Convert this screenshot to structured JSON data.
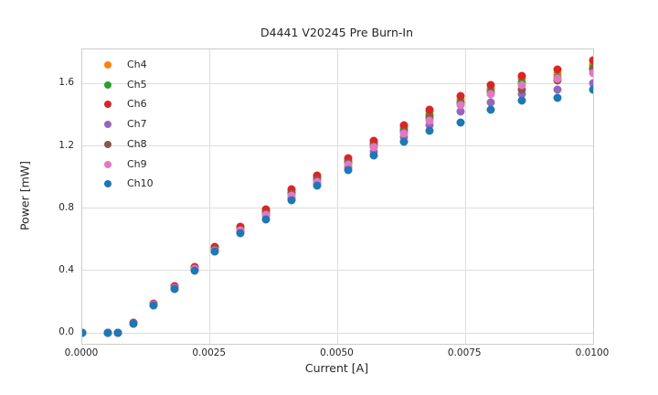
{
  "title": "D4441 V20245 Pre Burn-In",
  "axes": {
    "xlabel": "Current [A]",
    "ylabel": "Power [mW]"
  },
  "style": {
    "background": "#ffffff",
    "grid_color": "#dddddd",
    "spine_color": "#cccccc",
    "text_color": "#262626"
  },
  "chart_data": {
    "type": "scatter",
    "title": "D4441 V20245 Pre Burn-In",
    "xlabel": "Current [A]",
    "ylabel": "Power [mW]",
    "xlim": [
      0.0,
      0.01
    ],
    "ylim": [
      -0.07,
      1.82
    ],
    "grid": true,
    "legend_position": "upper left",
    "x_tick_values": [
      0.0,
      0.0025,
      0.005,
      0.0075,
      0.01
    ],
    "x_tick_labels": [
      "0.0000",
      "0.0025",
      "0.0050",
      "0.0075",
      "0.0100"
    ],
    "y_tick_values": [
      0.0,
      0.4,
      0.8,
      1.2,
      1.6
    ],
    "y_tick_labels": [
      "0.0",
      "0.4",
      "0.8",
      "1.2",
      "1.6"
    ],
    "x": [
      0.0,
      0.0005,
      0.0007,
      0.001,
      0.0014,
      0.0018,
      0.0022,
      0.0026,
      0.0031,
      0.0036,
      0.0041,
      0.0046,
      0.0052,
      0.0057,
      0.0063,
      0.0068,
      0.0074,
      0.008,
      0.0086,
      0.0093,
      0.01
    ],
    "series": [
      {
        "name": "Ch4",
        "color": "#ff7f0e",
        "values": [
          0,
          0,
          0,
          0.063,
          0.185,
          0.295,
          0.42,
          0.545,
          0.67,
          0.78,
          0.91,
          1.0,
          1.11,
          1.22,
          1.32,
          1.42,
          1.5,
          1.57,
          1.63,
          1.66,
          1.72
        ]
      },
      {
        "name": "Ch5",
        "color": "#2ca02c",
        "values": [
          0,
          0,
          0,
          0.062,
          0.183,
          0.292,
          0.415,
          0.54,
          0.665,
          0.775,
          0.9,
          0.99,
          1.1,
          1.21,
          1.305,
          1.4,
          1.48,
          1.55,
          1.61,
          1.64,
          1.7
        ]
      },
      {
        "name": "Ch6",
        "color": "#d62728",
        "values": [
          0,
          0,
          0,
          0.065,
          0.19,
          0.3,
          0.425,
          0.55,
          0.68,
          0.79,
          0.92,
          1.01,
          1.12,
          1.235,
          1.33,
          1.435,
          1.52,
          1.59,
          1.65,
          1.69,
          1.75
        ]
      },
      {
        "name": "Ch7",
        "color": "#9467bd",
        "values": [
          0,
          0,
          0,
          0.058,
          0.178,
          0.285,
          0.405,
          0.525,
          0.648,
          0.75,
          0.865,
          0.955,
          1.06,
          1.165,
          1.255,
          1.335,
          1.42,
          1.48,
          1.53,
          1.56,
          1.6
        ]
      },
      {
        "name": "Ch8",
        "color": "#8c564b",
        "values": [
          0,
          0,
          0,
          0.061,
          0.181,
          0.29,
          0.412,
          0.535,
          0.658,
          0.765,
          0.89,
          0.98,
          1.09,
          1.2,
          1.29,
          1.38,
          1.47,
          1.54,
          1.56,
          1.62,
          1.69
        ]
      },
      {
        "name": "Ch9",
        "color": "#e377c2",
        "values": [
          0,
          0,
          0,
          0.06,
          0.18,
          0.29,
          0.41,
          0.53,
          0.655,
          0.76,
          0.88,
          0.97,
          1.08,
          1.19,
          1.28,
          1.365,
          1.46,
          1.53,
          1.59,
          1.63,
          1.67
        ]
      },
      {
        "name": "Ch10",
        "color": "#1f77b4",
        "values": [
          0,
          0,
          0,
          0.057,
          0.175,
          0.282,
          0.4,
          0.52,
          0.64,
          0.73,
          0.85,
          0.945,
          1.045,
          1.14,
          1.23,
          1.3,
          1.35,
          1.43,
          1.49,
          1.51,
          1.56
        ]
      }
    ]
  }
}
